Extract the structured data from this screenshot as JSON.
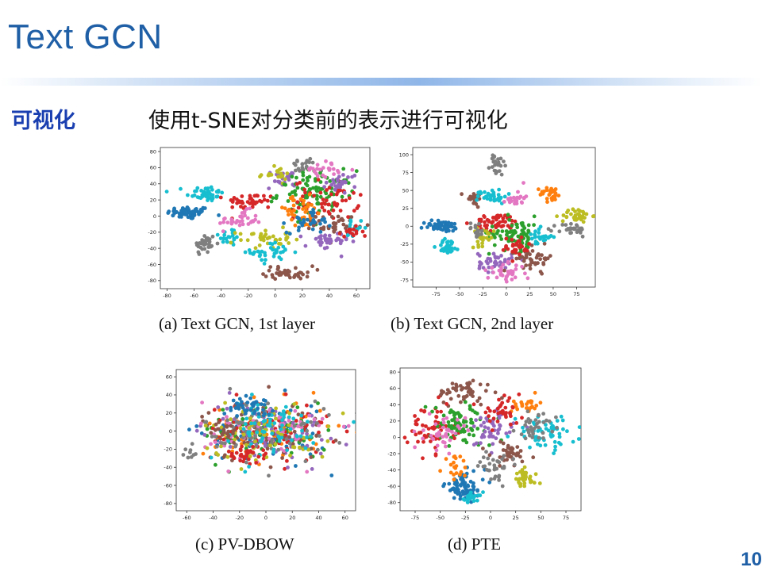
{
  "slide": {
    "title": "Text GCN",
    "label": "可视化",
    "subtitle": "使用t-SNE对分类前的表示进行可视化",
    "page_number": "10"
  },
  "palette": [
    "#1f77b4",
    "#ff7f0e",
    "#2ca02c",
    "#d62728",
    "#9467bd",
    "#8c564b",
    "#e377c2",
    "#7f7f7f",
    "#bcbd22",
    "#17becf"
  ],
  "chart_data": [
    {
      "type": "scatter",
      "caption": "(a) Text GCN, 1st layer",
      "xticks": [
        -80,
        -60,
        -40,
        -20,
        0,
        20,
        40,
        60
      ],
      "yticks": [
        80,
        60,
        40,
        20,
        0,
        -20,
        -40,
        -60,
        -80
      ],
      "xlim": [
        -85,
        70
      ],
      "ylim": [
        -90,
        85
      ],
      "clusters": [
        {
          "c": 0,
          "x": -64,
          "y": 4,
          "sx": 8,
          "sy": 4,
          "n": 60
        },
        {
          "c": 9,
          "x": -52,
          "y": 28,
          "sx": 7,
          "sy": 5,
          "n": 45
        },
        {
          "c": 7,
          "x": -52,
          "y": -35,
          "sx": 4,
          "sy": 7,
          "n": 35
        },
        {
          "c": 9,
          "x": -34,
          "y": -25,
          "sx": 4,
          "sy": 6,
          "n": 20
        },
        {
          "c": 3,
          "x": -18,
          "y": 18,
          "sx": 9,
          "sy": 5,
          "n": 40
        },
        {
          "c": 6,
          "x": -26,
          "y": -5,
          "sx": 8,
          "sy": 6,
          "n": 35
        },
        {
          "c": 8,
          "x": -8,
          "y": -28,
          "sx": 10,
          "sy": 6,
          "n": 40
        },
        {
          "c": 9,
          "x": -2,
          "y": -45,
          "sx": 8,
          "sy": 6,
          "n": 35
        },
        {
          "c": 5,
          "x": 10,
          "y": -70,
          "sx": 9,
          "sy": 4,
          "n": 40
        },
        {
          "c": 4,
          "x": 5,
          "y": 45,
          "sx": 6,
          "sy": 6,
          "n": 25
        },
        {
          "c": 8,
          "x": 0,
          "y": 52,
          "sx": 6,
          "sy": 4,
          "n": 20
        },
        {
          "c": 7,
          "x": 20,
          "y": 62,
          "sx": 5,
          "sy": 5,
          "n": 20
        },
        {
          "c": 2,
          "x": 30,
          "y": 28,
          "sx": 14,
          "sy": 14,
          "n": 100
        },
        {
          "c": 3,
          "x": 38,
          "y": 20,
          "sx": 12,
          "sy": 12,
          "n": 60
        },
        {
          "c": 6,
          "x": 36,
          "y": 58,
          "sx": 7,
          "sy": 5,
          "n": 25
        },
        {
          "c": 4,
          "x": 50,
          "y": 42,
          "sx": 6,
          "sy": 6,
          "n": 25
        },
        {
          "c": 5,
          "x": 45,
          "y": -10,
          "sx": 8,
          "sy": 6,
          "n": 40
        },
        {
          "c": 4,
          "x": 38,
          "y": -32,
          "sx": 8,
          "sy": 6,
          "n": 35
        },
        {
          "c": 1,
          "x": 18,
          "y": 5,
          "sx": 10,
          "sy": 10,
          "n": 40
        },
        {
          "c": 0,
          "x": 25,
          "y": -5,
          "sx": 8,
          "sy": 8,
          "n": 30
        },
        {
          "c": 9,
          "x": 60,
          "y": -15,
          "sx": 4,
          "sy": 4,
          "n": 15
        },
        {
          "c": 3,
          "x": 55,
          "y": -22,
          "sx": 5,
          "sy": 4,
          "n": 15
        }
      ]
    },
    {
      "type": "scatter",
      "caption": "(b) Text GCN, 2nd layer",
      "xticks": [
        -75,
        -50,
        -25,
        0,
        25,
        50,
        75
      ],
      "yticks": [
        100,
        75,
        50,
        25,
        0,
        -25,
        -50,
        -75
      ],
      "xlim": [
        -100,
        95
      ],
      "ylim": [
        -85,
        110
      ],
      "clusters": [
        {
          "c": 7,
          "x": -10,
          "y": 85,
          "sx": 4,
          "sy": 8,
          "n": 25
        },
        {
          "c": 5,
          "x": -35,
          "y": 40,
          "sx": 5,
          "sy": 5,
          "n": 25
        },
        {
          "c": 9,
          "x": -15,
          "y": 42,
          "sx": 8,
          "sy": 5,
          "n": 35
        },
        {
          "c": 6,
          "x": 10,
          "y": 40,
          "sx": 5,
          "sy": 6,
          "n": 25
        },
        {
          "c": 1,
          "x": 48,
          "y": 45,
          "sx": 6,
          "sy": 5,
          "n": 30
        },
        {
          "c": 8,
          "x": 75,
          "y": 15,
          "sx": 8,
          "sy": 5,
          "n": 35
        },
        {
          "c": 7,
          "x": 70,
          "y": -5,
          "sx": 8,
          "sy": 5,
          "n": 30
        },
        {
          "c": 0,
          "x": -68,
          "y": 0,
          "sx": 10,
          "sy": 4,
          "n": 50
        },
        {
          "c": 9,
          "x": -62,
          "y": -28,
          "sx": 6,
          "sy": 5,
          "n": 30
        },
        {
          "c": 3,
          "x": -10,
          "y": 5,
          "sx": 12,
          "sy": 6,
          "n": 50
        },
        {
          "c": 2,
          "x": 10,
          "y": -10,
          "sx": 14,
          "sy": 12,
          "n": 80
        },
        {
          "c": 4,
          "x": -12,
          "y": -50,
          "sx": 9,
          "sy": 7,
          "n": 40
        },
        {
          "c": 5,
          "x": 30,
          "y": -45,
          "sx": 10,
          "sy": 8,
          "n": 45
        },
        {
          "c": 8,
          "x": -25,
          "y": -15,
          "sx": 6,
          "sy": 6,
          "n": 25
        },
        {
          "c": 9,
          "x": 35,
          "y": -15,
          "sx": 7,
          "sy": 6,
          "n": 25
        },
        {
          "c": 6,
          "x": 0,
          "y": -65,
          "sx": 10,
          "sy": 6,
          "n": 35
        },
        {
          "c": 7,
          "x": -32,
          "y": -5,
          "sx": 5,
          "sy": 5,
          "n": 15
        },
        {
          "c": 3,
          "x": 10,
          "y": -30,
          "sx": 8,
          "sy": 8,
          "n": 30
        }
      ]
    },
    {
      "type": "scatter",
      "caption": "(c) PV-DBOW",
      "xticks": [
        -60,
        -40,
        -20,
        0,
        20,
        40,
        60
      ],
      "yticks": [
        60,
        40,
        20,
        0,
        -20,
        -40,
        -60,
        -80
      ],
      "xlim": [
        -68,
        68
      ],
      "ylim": [
        -88,
        68
      ],
      "clusters": [
        {
          "c": 0,
          "x": 0,
          "y": 0,
          "sx": 24,
          "sy": 17,
          "n": 70
        },
        {
          "c": 1,
          "x": 0,
          "y": 0,
          "sx": 24,
          "sy": 17,
          "n": 70
        },
        {
          "c": 2,
          "x": 0,
          "y": 0,
          "sx": 24,
          "sy": 17,
          "n": 70
        },
        {
          "c": 3,
          "x": 0,
          "y": 0,
          "sx": 24,
          "sy": 17,
          "n": 70
        },
        {
          "c": 4,
          "x": 0,
          "y": 0,
          "sx": 24,
          "sy": 17,
          "n": 70
        },
        {
          "c": 5,
          "x": 0,
          "y": 0,
          "sx": 24,
          "sy": 17,
          "n": 70
        },
        {
          "c": 6,
          "x": 0,
          "y": 0,
          "sx": 24,
          "sy": 17,
          "n": 70
        },
        {
          "c": 7,
          "x": 0,
          "y": 0,
          "sx": 24,
          "sy": 17,
          "n": 70
        },
        {
          "c": 8,
          "x": 0,
          "y": 0,
          "sx": 24,
          "sy": 17,
          "n": 70
        },
        {
          "c": 9,
          "x": 0,
          "y": 0,
          "sx": 24,
          "sy": 17,
          "n": 70
        },
        {
          "c": 0,
          "x": -10,
          "y": 28,
          "sx": 8,
          "sy": 5,
          "n": 40
        },
        {
          "c": 5,
          "x": -30,
          "y": 0,
          "sx": 5,
          "sy": 5,
          "n": 20
        },
        {
          "c": 3,
          "x": -15,
          "y": -25,
          "sx": 8,
          "sy": 5,
          "n": 25
        },
        {
          "c": 7,
          "x": -58,
          "y": -25,
          "sx": 3,
          "sy": 3,
          "n": 8
        }
      ]
    },
    {
      "type": "scatter",
      "caption": "(d) PTE",
      "xticks": [
        -75,
        -50,
        -25,
        0,
        25,
        50,
        75
      ],
      "yticks": [
        80,
        60,
        40,
        20,
        0,
        -20,
        -40,
        -60,
        -80
      ],
      "xlim": [
        -90,
        90
      ],
      "ylim": [
        -90,
        85
      ],
      "clusters": [
        {
          "c": 5,
          "x": -25,
          "y": 55,
          "sx": 14,
          "sy": 8,
          "n": 50
        },
        {
          "c": 1,
          "x": 35,
          "y": 40,
          "sx": 7,
          "sy": 5,
          "n": 25
        },
        {
          "c": 3,
          "x": -60,
          "y": 10,
          "sx": 12,
          "sy": 14,
          "n": 60
        },
        {
          "c": 2,
          "x": -30,
          "y": 15,
          "sx": 16,
          "sy": 14,
          "n": 80
        },
        {
          "c": 6,
          "x": -45,
          "y": 5,
          "sx": 10,
          "sy": 10,
          "n": 40
        },
        {
          "c": 4,
          "x": 0,
          "y": 10,
          "sx": 12,
          "sy": 12,
          "n": 50
        },
        {
          "c": 9,
          "x": 55,
          "y": 5,
          "sx": 15,
          "sy": 10,
          "n": 60
        },
        {
          "c": 7,
          "x": 45,
          "y": 15,
          "sx": 10,
          "sy": 8,
          "n": 35
        },
        {
          "c": 5,
          "x": 20,
          "y": -20,
          "sx": 10,
          "sy": 8,
          "n": 40
        },
        {
          "c": 8,
          "x": 32,
          "y": -52,
          "sx": 7,
          "sy": 6,
          "n": 35
        },
        {
          "c": 0,
          "x": -25,
          "y": -60,
          "sx": 10,
          "sy": 9,
          "n": 70
        },
        {
          "c": 9,
          "x": -20,
          "y": -75,
          "sx": 6,
          "sy": 4,
          "n": 20
        },
        {
          "c": 7,
          "x": 5,
          "y": -35,
          "sx": 8,
          "sy": 8,
          "n": 35
        },
        {
          "c": 3,
          "x": 10,
          "y": 30,
          "sx": 10,
          "sy": 8,
          "n": 35
        },
        {
          "c": 1,
          "x": -35,
          "y": -35,
          "sx": 6,
          "sy": 6,
          "n": 20
        }
      ]
    }
  ]
}
